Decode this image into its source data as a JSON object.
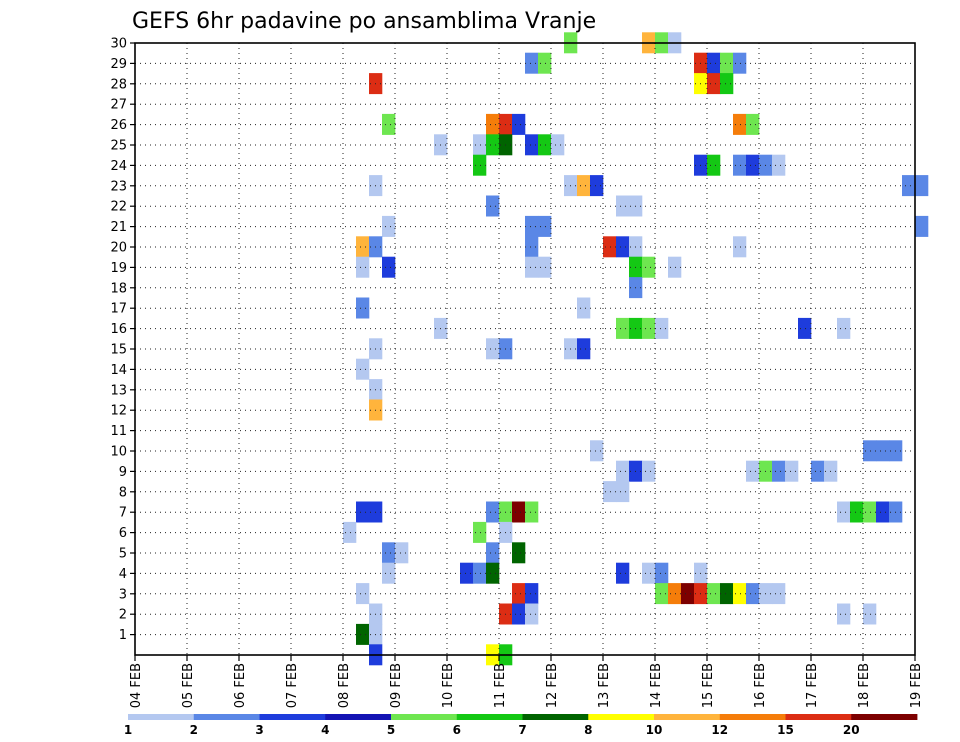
{
  "chart_data": {
    "type": "heatmap",
    "title": "GEFS 6hr padavine po ansamblima Vranje",
    "xlabel": "",
    "ylabel": "",
    "x_tick_labels": [
      "04 FEB",
      "05 FEB",
      "06 FEB",
      "07 FEB",
      "08 FEB",
      "09 FEB",
      "10 FEB",
      "11 FEB",
      "12 FEB",
      "13 FEB",
      "14 FEB",
      "15 FEB",
      "16 FEB",
      "17 FEB",
      "18 FEB",
      "19 FEB"
    ],
    "y_tick_labels": [
      "1",
      "2",
      "3",
      "4",
      "5",
      "6",
      "7",
      "8",
      "9",
      "10",
      "11",
      "12",
      "13",
      "14",
      "15",
      "16",
      "17",
      "18",
      "19",
      "20",
      "21",
      "22",
      "23",
      "24",
      "25",
      "26",
      "27",
      "28",
      "29",
      "30"
    ],
    "xlim_days": [
      0,
      15
    ],
    "ylim_members": [
      0,
      30
    ],
    "grid": true,
    "colorbar": {
      "labels": [
        "1",
        "2",
        "3",
        "4",
        "5",
        "6",
        "7",
        "8",
        "10",
        "12",
        "15",
        "20"
      ],
      "colors": [
        "#b4c8f0",
        "#5a87e6",
        "#1e3cdc",
        "#1414b4",
        "#6ee650",
        "#14c814",
        "#006400",
        "#ffff00",
        "#ffb43c",
        "#f57d0a",
        "#dc2d14",
        "#7d0000"
      ]
    },
    "cells": [
      [
        30,
        8.375,
        5
      ],
      [
        30,
        9.875,
        9
      ],
      [
        30,
        10.125,
        5
      ],
      [
        30,
        10.375,
        1
      ],
      [
        29,
        7.625,
        2
      ],
      [
        29,
        7.875,
        5
      ],
      [
        29,
        10.875,
        11
      ],
      [
        29,
        11.125,
        3
      ],
      [
        29,
        11.375,
        5
      ],
      [
        29,
        11.625,
        2
      ],
      [
        28,
        4.625,
        11
      ],
      [
        28,
        10.875,
        8
      ],
      [
        28,
        11.125,
        11
      ],
      [
        28,
        11.375,
        6
      ],
      [
        26,
        4.875,
        5
      ],
      [
        26,
        6.875,
        10
      ],
      [
        26,
        7.125,
        11
      ],
      [
        26,
        7.375,
        3
      ],
      [
        26,
        11.625,
        10
      ],
      [
        26,
        11.875,
        5
      ],
      [
        25,
        5.875,
        1
      ],
      [
        25,
        6.625,
        1
      ],
      [
        25,
        6.875,
        6
      ],
      [
        25,
        7.125,
        7
      ],
      [
        25,
        7.625,
        3
      ],
      [
        25,
        7.875,
        6
      ],
      [
        25,
        8.125,
        1
      ],
      [
        24,
        6.625,
        6
      ],
      [
        24,
        10.875,
        3
      ],
      [
        24,
        11.125,
        6
      ],
      [
        24,
        11.625,
        2
      ],
      [
        24,
        11.875,
        3
      ],
      [
        24,
        12.125,
        2
      ],
      [
        24,
        12.375,
        1
      ],
      [
        23,
        4.625,
        1
      ],
      [
        23,
        8.375,
        1
      ],
      [
        23,
        8.625,
        9
      ],
      [
        23,
        8.875,
        3
      ],
      [
        23,
        14.875,
        2
      ],
      [
        23,
        15.125,
        2
      ],
      [
        22,
        6.875,
        2
      ],
      [
        22,
        9.375,
        1
      ],
      [
        22,
        9.625,
        1
      ],
      [
        21,
        4.875,
        1
      ],
      [
        21,
        7.625,
        2
      ],
      [
        21,
        7.875,
        2
      ],
      [
        21,
        15.125,
        2
      ],
      [
        20,
        4.375,
        9
      ],
      [
        20,
        4.625,
        2
      ],
      [
        20,
        7.625,
        2
      ],
      [
        20,
        9.125,
        11
      ],
      [
        20,
        9.375,
        3
      ],
      [
        20,
        9.625,
        1
      ],
      [
        20,
        11.625,
        1
      ],
      [
        19,
        4.375,
        1
      ],
      [
        19,
        4.875,
        3
      ],
      [
        19,
        7.625,
        1
      ],
      [
        19,
        7.875,
        1
      ],
      [
        19,
        9.625,
        6
      ],
      [
        19,
        9.875,
        5
      ],
      [
        19,
        10.375,
        1
      ],
      [
        18,
        9.625,
        2
      ],
      [
        17,
        4.375,
        2
      ],
      [
        17,
        8.625,
        1
      ],
      [
        16,
        5.875,
        1
      ],
      [
        16,
        9.375,
        5
      ],
      [
        16,
        9.625,
        6
      ],
      [
        16,
        9.875,
        5
      ],
      [
        16,
        10.125,
        1
      ],
      [
        16,
        12.875,
        3
      ],
      [
        16,
        13.625,
        1
      ],
      [
        15,
        4.625,
        1
      ],
      [
        15,
        6.875,
        1
      ],
      [
        15,
        7.125,
        2
      ],
      [
        15,
        8.375,
        1
      ],
      [
        15,
        8.625,
        3
      ],
      [
        14,
        4.375,
        1
      ],
      [
        13,
        4.625,
        1
      ],
      [
        12,
        4.625,
        9
      ],
      [
        10,
        8.875,
        1
      ],
      [
        10,
        14.125,
        2
      ],
      [
        10,
        14.375,
        2
      ],
      [
        10,
        14.625,
        2
      ],
      [
        9,
        9.375,
        1
      ],
      [
        9,
        9.625,
        3
      ],
      [
        9,
        9.875,
        1
      ],
      [
        9,
        11.875,
        1
      ],
      [
        9,
        12.125,
        5
      ],
      [
        9,
        12.375,
        2
      ],
      [
        9,
        12.625,
        1
      ],
      [
        9,
        13.125,
        2
      ],
      [
        9,
        13.375,
        1
      ],
      [
        8,
        9.125,
        1
      ],
      [
        8,
        9.375,
        1
      ],
      [
        7,
        4.375,
        3
      ],
      [
        7,
        4.625,
        3
      ],
      [
        7,
        6.875,
        2
      ],
      [
        7,
        7.125,
        5
      ],
      [
        7,
        7.375,
        12
      ],
      [
        7,
        7.625,
        5
      ],
      [
        7,
        13.625,
        1
      ],
      [
        7,
        13.875,
        6
      ],
      [
        7,
        14.125,
        5
      ],
      [
        7,
        14.375,
        3
      ],
      [
        7,
        14.625,
        2
      ],
      [
        6,
        4.125,
        1
      ],
      [
        6,
        6.625,
        5
      ],
      [
        6,
        7.125,
        1
      ],
      [
        5,
        4.875,
        2
      ],
      [
        5,
        5.125,
        1
      ],
      [
        5,
        6.875,
        2
      ],
      [
        5,
        7.375,
        7
      ],
      [
        4,
        4.875,
        1
      ],
      [
        4,
        6.375,
        3
      ],
      [
        4,
        6.625,
        2
      ],
      [
        4,
        6.875,
        7
      ],
      [
        4,
        9.375,
        3
      ],
      [
        4,
        9.875,
        1
      ],
      [
        4,
        10.125,
        2
      ],
      [
        4,
        10.875,
        1
      ],
      [
        3,
        4.375,
        1
      ],
      [
        3,
        7.375,
        11
      ],
      [
        3,
        7.625,
        3
      ],
      [
        3,
        10.125,
        5
      ],
      [
        3,
        10.375,
        10
      ],
      [
        3,
        10.625,
        12
      ],
      [
        3,
        10.875,
        11
      ],
      [
        3,
        11.125,
        5
      ],
      [
        3,
        11.375,
        7
      ],
      [
        3,
        11.625,
        8
      ],
      [
        3,
        11.875,
        2
      ],
      [
        3,
        12.125,
        1
      ],
      [
        3,
        12.375,
        1
      ],
      [
        2,
        4.625,
        1
      ],
      [
        2,
        7.125,
        11
      ],
      [
        2,
        7.375,
        3
      ],
      [
        2,
        7.625,
        1
      ],
      [
        2,
        13.625,
        1
      ],
      [
        2,
        14.125,
        1
      ],
      [
        1,
        4.375,
        7
      ],
      [
        1,
        4.625,
        1
      ],
      [
        0,
        4.625,
        3
      ],
      [
        0,
        6.875,
        8
      ],
      [
        0,
        7.125,
        6
      ]
    ]
  }
}
